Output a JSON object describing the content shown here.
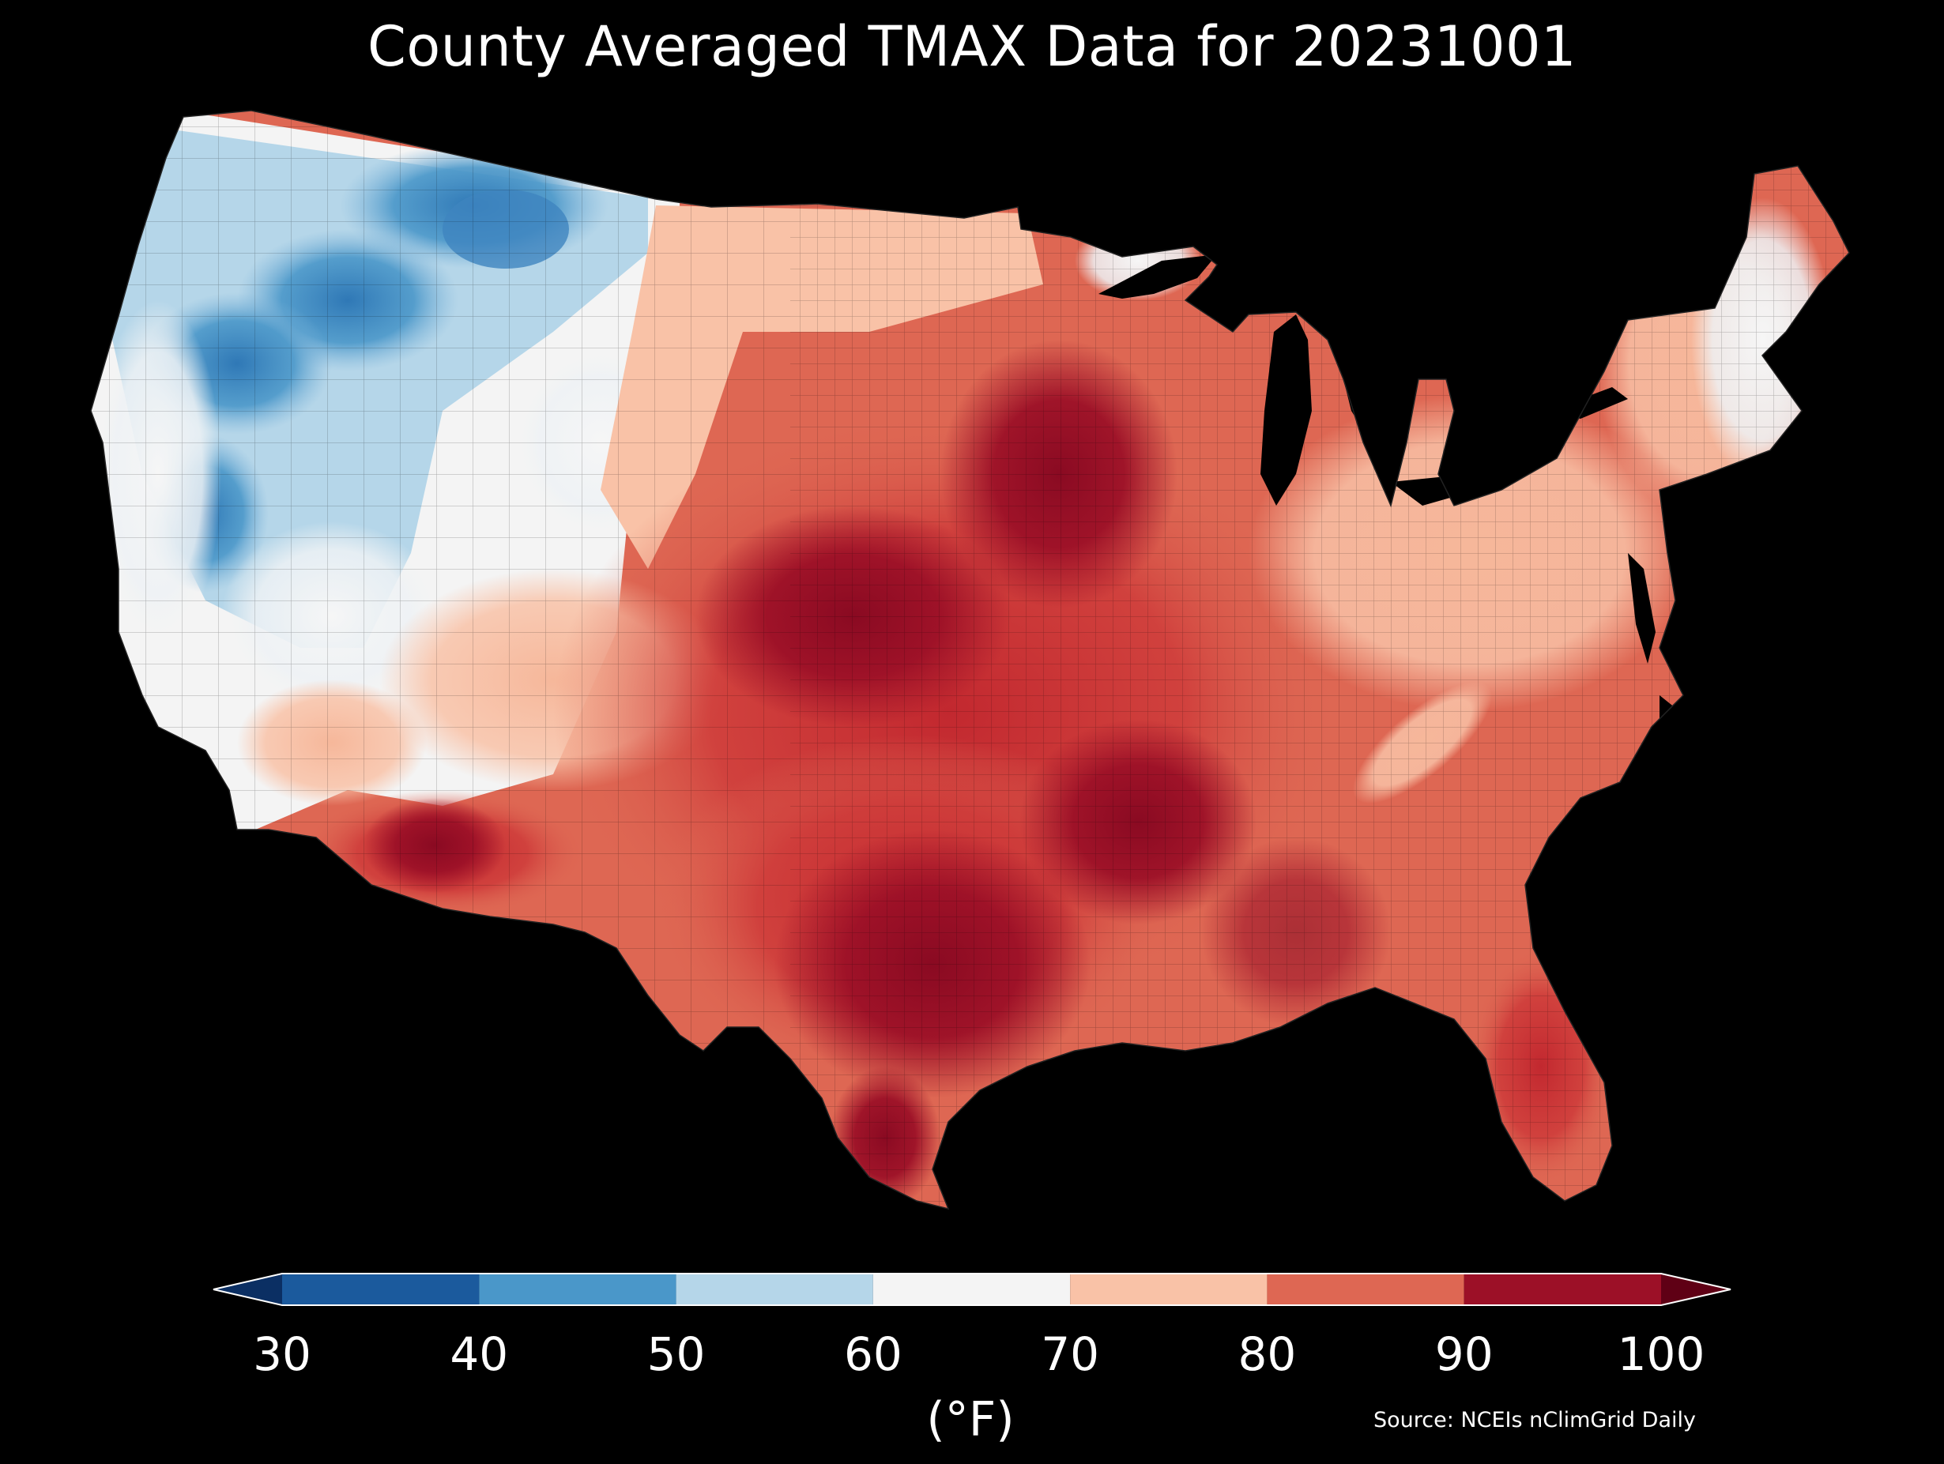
{
  "title": "County Averaged TMAX Data for 20231001",
  "colorbar": {
    "ticks": [
      "30",
      "40",
      "50",
      "60",
      "70",
      "80",
      "90",
      "100"
    ],
    "units": "(°F)",
    "bins": [
      {
        "from": 30,
        "to": 40,
        "color": "#1b5a9d"
      },
      {
        "from": 40,
        "to": 50,
        "color": "#4a97c9"
      },
      {
        "from": 50,
        "to": 60,
        "color": "#b5d6e9"
      },
      {
        "from": 60,
        "to": 70,
        "color": "#f4f4f4"
      },
      {
        "from": 70,
        "to": 80,
        "color": "#f9c2a7"
      },
      {
        "from": 80,
        "to": 90,
        "color": "#de6753"
      },
      {
        "from": 90,
        "to": 100,
        "color": "#9c1027"
      }
    ],
    "under_color": "#0b2f63",
    "over_color": "#5f0015"
  },
  "source": "Source: NCEIs nClimGrid Daily",
  "map": {
    "region": "Contiguous United States counties",
    "regions_approx": [
      {
        "area": "Pacific Northwest / Northern Rockies",
        "range_f": "40-60"
      },
      {
        "area": "California coast / Great Basin",
        "range_f": "50-70"
      },
      {
        "area": "Great Plains (KS/OK/NE)",
        "range_f": "90-100"
      },
      {
        "area": "South Texas / Desert Southwest",
        "range_f": "90-100"
      },
      {
        "area": "Southeast / Mid-Atlantic",
        "range_f": "70-90"
      },
      {
        "area": "New England",
        "range_f": "60-80"
      }
    ]
  }
}
